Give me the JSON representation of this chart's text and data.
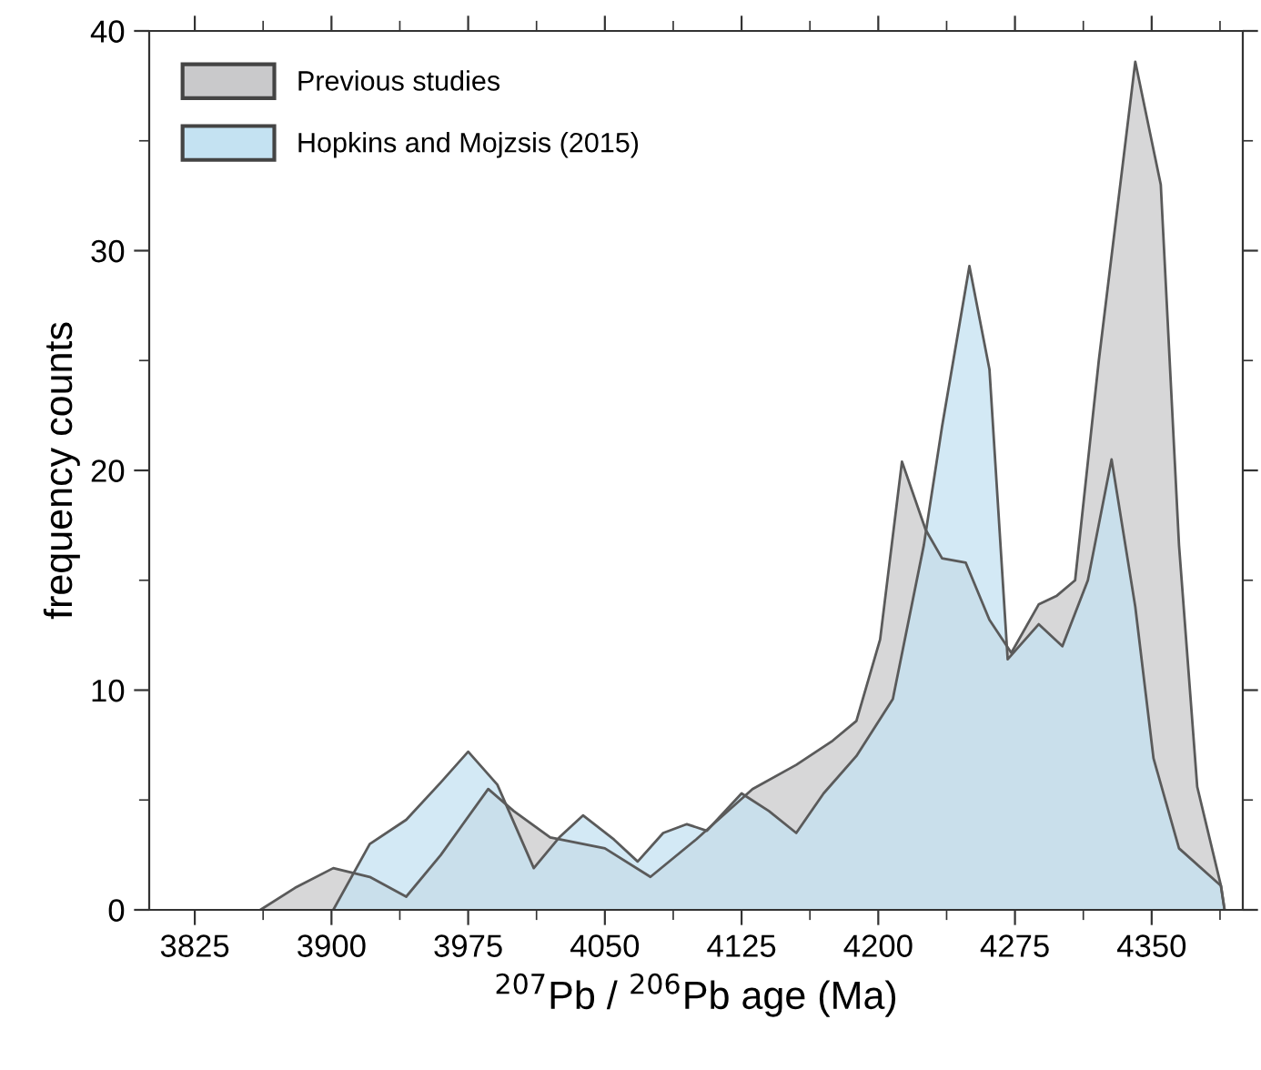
{
  "chart_data": {
    "type": "area",
    "xlabel": "$^{207}$Pb / $^{206}$Pb age (Ma)",
    "ylabel": "frequency counts",
    "xlim": [
      3800,
      4400
    ],
    "xticks": [
      3825,
      3900,
      3975,
      4050,
      4125,
      4200,
      4275,
      4350
    ],
    "ylim": [
      0,
      40
    ],
    "yticks": [
      0,
      10,
      20,
      30,
      40
    ],
    "grid": false,
    "legend": "top left",
    "series": [
      {
        "name": "Previous studies",
        "color": "#c9c9cb",
        "x": [
          3861,
          3880,
          3901,
          3921,
          3941,
          3960,
          3986,
          4000,
          4020,
          4050,
          4075,
          4100,
          4131,
          4155,
          4175,
          4188,
          4201,
          4213,
          4226,
          4235,
          4248,
          4261,
          4273,
          4288,
          4298,
          4308,
          4321,
          4341,
          4355,
          4365,
          4375,
          4388,
          4390
        ],
        "values": [
          0,
          1.0,
          1.9,
          1.5,
          0.6,
          2.5,
          5.5,
          4.5,
          3.3,
          2.8,
          1.5,
          3.2,
          5.5,
          6.6,
          7.7,
          8.6,
          12.3,
          20.4,
          17.3,
          16.0,
          15.8,
          13.2,
          11.7,
          13.9,
          14.3,
          15.0,
          25,
          38.6,
          33,
          16.6,
          5.6,
          1.1,
          0
        ]
      },
      {
        "name": "Hopkins and Mojzsis (2015)",
        "color": "#c4e2f2",
        "x": [
          3901,
          3921,
          3941,
          3960,
          3975,
          3991,
          4011,
          4025,
          4038,
          4055,
          4068,
          4082,
          4095,
          4106,
          4125,
          4140,
          4155,
          4170,
          4188,
          4208,
          4225,
          4235,
          4250,
          4261,
          4271,
          4288,
          4301,
          4315,
          4328,
          4341,
          4351,
          4365,
          4388,
          4390
        ],
        "values": [
          0,
          3.0,
          4.1,
          5.8,
          7.2,
          5.7,
          1.9,
          3.3,
          4.3,
          3.2,
          2.2,
          3.5,
          3.9,
          3.6,
          5.3,
          4.5,
          3.5,
          5.3,
          7.0,
          9.6,
          16.6,
          22,
          29.3,
          24.6,
          11.4,
          13.0,
          12.0,
          15.0,
          20.5,
          13.8,
          6.9,
          2.8,
          1.1,
          0
        ]
      }
    ]
  }
}
